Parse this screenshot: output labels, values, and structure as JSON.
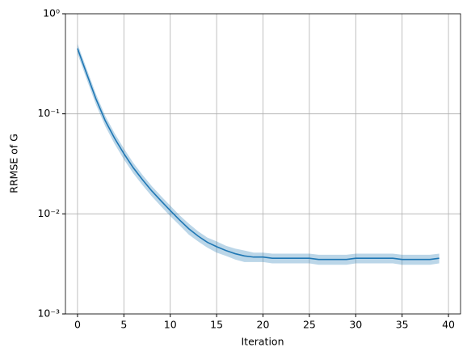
{
  "chart_data": {
    "type": "line",
    "xlabel": "Iteration",
    "ylabel": "RRMSE of G",
    "x": [
      0,
      1,
      2,
      3,
      4,
      5,
      6,
      7,
      8,
      9,
      10,
      11,
      12,
      13,
      14,
      15,
      16,
      17,
      18,
      19,
      20,
      21,
      22,
      23,
      24,
      25,
      26,
      27,
      28,
      29,
      30,
      31,
      32,
      33,
      34,
      35,
      36,
      37,
      38,
      39
    ],
    "series": [
      {
        "color": "#1f77b4",
        "values": [
          0.45,
          0.25,
          0.14,
          0.085,
          0.057,
          0.04,
          0.029,
          0.022,
          0.017,
          0.0135,
          0.0108,
          0.0087,
          0.0071,
          0.006,
          0.0052,
          0.0047,
          0.0043,
          0.004,
          0.0038,
          0.0037,
          0.0037,
          0.0036,
          0.0036,
          0.0036,
          0.0036,
          0.0036,
          0.0035,
          0.0035,
          0.0035,
          0.0035,
          0.0036,
          0.0036,
          0.0036,
          0.0036,
          0.0036,
          0.0035,
          0.0035,
          0.0035,
          0.0035,
          0.0036
        ],
        "upper": [
          0.5,
          0.28,
          0.157,
          0.095,
          0.064,
          0.045,
          0.0325,
          0.0246,
          0.019,
          0.0151,
          0.0121,
          0.0097,
          0.008,
          0.0067,
          0.0058,
          0.0053,
          0.0048,
          0.0045,
          0.0043,
          0.0041,
          0.0041,
          0.004,
          0.004,
          0.004,
          0.004,
          0.004,
          0.0039,
          0.0039,
          0.0039,
          0.0039,
          0.004,
          0.004,
          0.004,
          0.004,
          0.004,
          0.0039,
          0.0039,
          0.0039,
          0.0039,
          0.004
        ],
        "lower": [
          0.4,
          0.22,
          0.123,
          0.075,
          0.05,
          0.035,
          0.0255,
          0.0194,
          0.015,
          0.0119,
          0.0095,
          0.0077,
          0.0062,
          0.0053,
          0.0046,
          0.0041,
          0.0038,
          0.0035,
          0.0033,
          0.0033,
          0.0033,
          0.0032,
          0.0032,
          0.0032,
          0.0032,
          0.0032,
          0.0031,
          0.0031,
          0.0031,
          0.0031,
          0.0032,
          0.0032,
          0.0032,
          0.0032,
          0.0032,
          0.0031,
          0.0031,
          0.0031,
          0.0031,
          0.0032
        ]
      }
    ],
    "xlim": [
      -1.3,
      41.3
    ],
    "xticks": [
      0,
      5,
      10,
      15,
      20,
      25,
      30,
      35,
      40
    ],
    "ylim": [
      0.001,
      1
    ],
    "ylog": true,
    "yticks": [
      {
        "value": 0.001,
        "label": "10⁻³"
      },
      {
        "value": 0.01,
        "label": "10⁻²"
      },
      {
        "value": 0.1,
        "label": "10⁻¹"
      },
      {
        "value": 1,
        "label": "10⁰"
      }
    ],
    "grid": true
  }
}
